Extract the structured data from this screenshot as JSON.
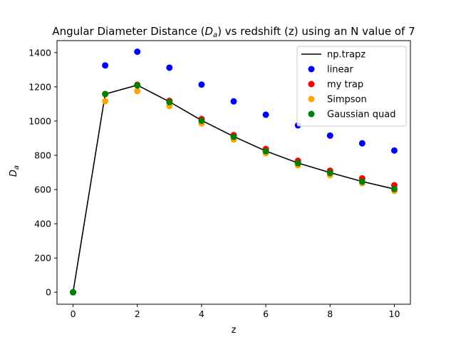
{
  "chart_data": {
    "type": "scatter",
    "title": "Angular Diameter Distance (D_a) vs redshift (z) using an N value of 7",
    "title_parts": {
      "pre": "Angular Diameter Distance (",
      "sym": "D",
      "sub": "a",
      "post": ") vs redshift (z) using an N value of 7"
    },
    "xlabel": "z",
    "ylabel": {
      "sym": "D",
      "sub": "a"
    },
    "xlim": [
      -0.5,
      10.5
    ],
    "ylim": [
      -70,
      1470
    ],
    "xticks": [
      0,
      2,
      4,
      6,
      8,
      10
    ],
    "yticks": [
      0,
      200,
      400,
      600,
      800,
      1000,
      1200,
      1400
    ],
    "grid": false,
    "legend_position": "top-right",
    "x": [
      0,
      1,
      2,
      3,
      4,
      5,
      6,
      7,
      8,
      9,
      10
    ],
    "series": [
      {
        "name": "np.trapz",
        "kind": "line",
        "color": "#000000",
        "values": [
          0,
          1158,
          1210,
          1113,
          1004,
          910,
          825,
          755,
          699,
          647,
          603
        ]
      },
      {
        "name": "linear",
        "kind": "scatter",
        "color": "#0000ff",
        "values": [
          0,
          1325,
          1405,
          1312,
          1213,
          1115,
          1037,
          975,
          915,
          870,
          828
        ]
      },
      {
        "name": "my trap",
        "kind": "scatter",
        "color": "#ff0000",
        "values": [
          0,
          1158,
          1212,
          1118,
          1012,
          918,
          837,
          768,
          710,
          665,
          625
        ]
      },
      {
        "name": "Simpson",
        "kind": "scatter",
        "color": "#ffa500",
        "values": [
          0,
          1116,
          1175,
          1088,
          986,
          892,
          812,
          742,
          684,
          637,
          592
        ]
      },
      {
        "name": "Gaussian quad",
        "kind": "scatter",
        "color": "#008000",
        "values": [
          0,
          1158,
          1208,
          1110,
          1002,
          908,
          824,
          754,
          697,
          646,
          603
        ]
      }
    ]
  }
}
